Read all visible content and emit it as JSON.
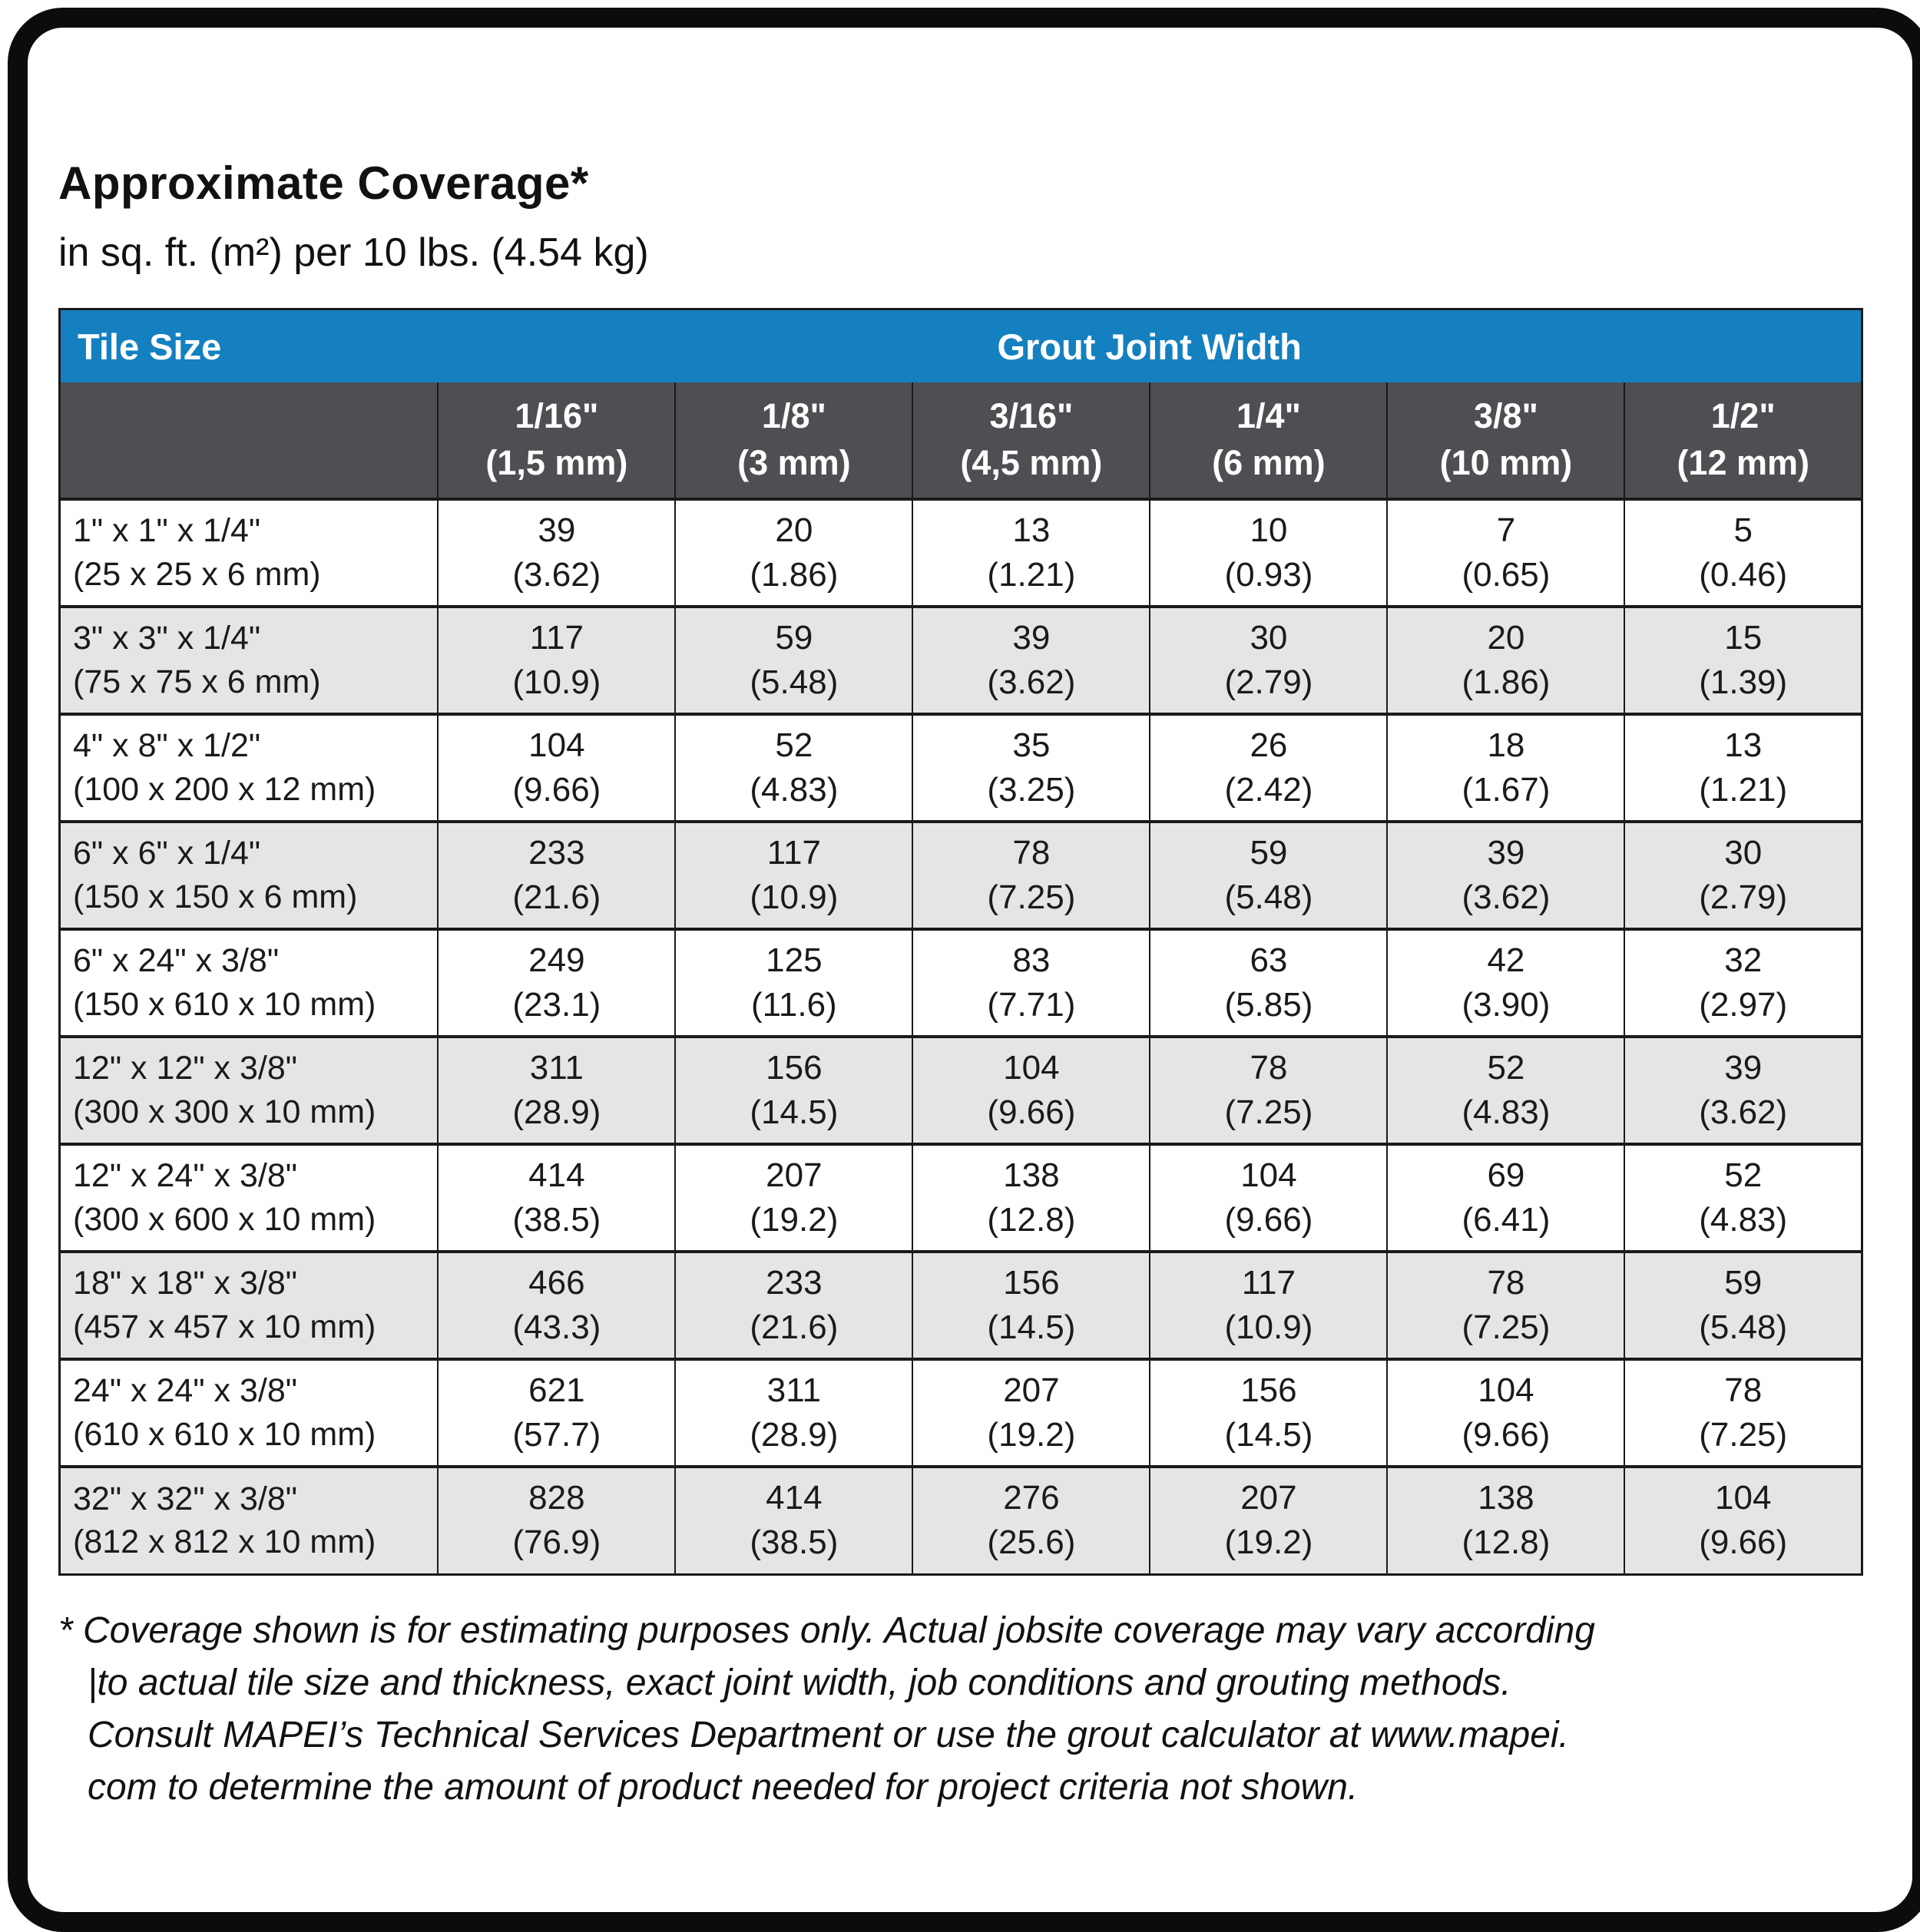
{
  "title": "Approximate Coverage*",
  "subtitle": "in sq. ft. (m²) per 10 lbs. (4.54 kg)",
  "colors": {
    "header_blue": "#1480C0",
    "subheader_gray": "#4E4F52",
    "row_alt_gray": "#E4E5E7",
    "border_black": "#1A1A1A"
  },
  "table": {
    "corner_label": "Tile Size",
    "group_header": "Grout Joint Width",
    "columns": [
      {
        "size": "1/16\"",
        "metric": "(1,5 mm)"
      },
      {
        "size": "1/8\"",
        "metric": "(3 mm)"
      },
      {
        "size": "3/16\"",
        "metric": "(4,5 mm)"
      },
      {
        "size": "1/4\"",
        "metric": "(6 mm)"
      },
      {
        "size": "3/8\"",
        "metric": "(10 mm)"
      },
      {
        "size": "1/2\"",
        "metric": "(12 mm)"
      }
    ],
    "rows": [
      {
        "tile": "1\" x 1\" x 1/4\"",
        "tile_metric": "(25 x 25 x 6 mm)",
        "values": [
          "39",
          "20",
          "13",
          "10",
          "7",
          "5"
        ],
        "metrics": [
          "(3.62)",
          "(1.86)",
          "(1.21)",
          "(0.93)",
          "(0.65)",
          "(0.46)"
        ]
      },
      {
        "tile": "3\" x 3\" x 1/4\"",
        "tile_metric": "(75 x 75 x 6 mm)",
        "values": [
          "117",
          "59",
          "39",
          "30",
          "20",
          "15"
        ],
        "metrics": [
          "(10.9)",
          "(5.48)",
          "(3.62)",
          "(2.79)",
          "(1.86)",
          "(1.39)"
        ]
      },
      {
        "tile": "4\" x 8\" x 1/2\"",
        "tile_metric": "(100 x 200 x 12 mm)",
        "values": [
          "104",
          "52",
          "35",
          "26",
          "18",
          "13"
        ],
        "metrics": [
          "(9.66)",
          "(4.83)",
          "(3.25)",
          "(2.42)",
          "(1.67)",
          "(1.21)"
        ]
      },
      {
        "tile": "6\" x 6\" x 1/4\"",
        "tile_metric": "(150 x 150 x 6 mm)",
        "values": [
          "233",
          "117",
          "78",
          "59",
          "39",
          "30"
        ],
        "metrics": [
          "(21.6)",
          "(10.9)",
          "(7.25)",
          "(5.48)",
          "(3.62)",
          "(2.79)"
        ]
      },
      {
        "tile": "6\" x 24\" x 3/8\"",
        "tile_metric": "(150 x 610 x 10 mm)",
        "values": [
          "249",
          "125",
          "83",
          "63",
          "42",
          "32"
        ],
        "metrics": [
          "(23.1)",
          "(11.6)",
          "(7.71)",
          "(5.85)",
          "(3.90)",
          "(2.97)"
        ]
      },
      {
        "tile": "12\" x 12\" x 3/8\"",
        "tile_metric": "(300 x 300 x 10 mm)",
        "values": [
          "311",
          "156",
          "104",
          "78",
          "52",
          "39"
        ],
        "metrics": [
          "(28.9)",
          "(14.5)",
          "(9.66)",
          "(7.25)",
          "(4.83)",
          "(3.62)"
        ]
      },
      {
        "tile": "12\" x 24\" x 3/8\"",
        "tile_metric": "(300 x 600 x 10 mm)",
        "values": [
          "414",
          "207",
          "138",
          "104",
          "69",
          "52"
        ],
        "metrics": [
          "(38.5)",
          "(19.2)",
          "(12.8)",
          "(9.66)",
          "(6.41)",
          "(4.83)"
        ]
      },
      {
        "tile": "18\" x 18\" x 3/8\"",
        "tile_metric": "(457 x 457 x 10 mm)",
        "values": [
          "466",
          "233",
          "156",
          "117",
          "78",
          "59"
        ],
        "metrics": [
          "(43.3)",
          "(21.6)",
          "(14.5)",
          "(10.9)",
          "(7.25)",
          "(5.48)"
        ]
      },
      {
        "tile": "24\" x 24\" x 3/8\"",
        "tile_metric": "(610 x 610 x 10 mm)",
        "values": [
          "621",
          "311",
          "207",
          "156",
          "104",
          "78"
        ],
        "metrics": [
          "(57.7)",
          "(28.9)",
          "(19.2)",
          "(14.5)",
          "(9.66)",
          "(7.25)"
        ]
      },
      {
        "tile": "32\" x 32\" x 3/8\"",
        "tile_metric": "(812 x 812 x 10 mm)",
        "values": [
          "828",
          "414",
          "276",
          "207",
          "138",
          "104"
        ],
        "metrics": [
          "(76.9)",
          "(38.5)",
          "(25.6)",
          "(19.2)",
          "(12.8)",
          "(9.66)"
        ]
      }
    ]
  },
  "footnote": {
    "lines": [
      "* Coverage shown is for estimating purposes only. Actual jobsite coverage may vary according",
      "|to actual tile size and thickness, exact joint width, job conditions and grouting methods.",
      "Consult MAPEI’s Technical Services Department or use the grout calculator at www.mapei.",
      "com to determine the amount of product needed for project criteria not shown."
    ]
  }
}
